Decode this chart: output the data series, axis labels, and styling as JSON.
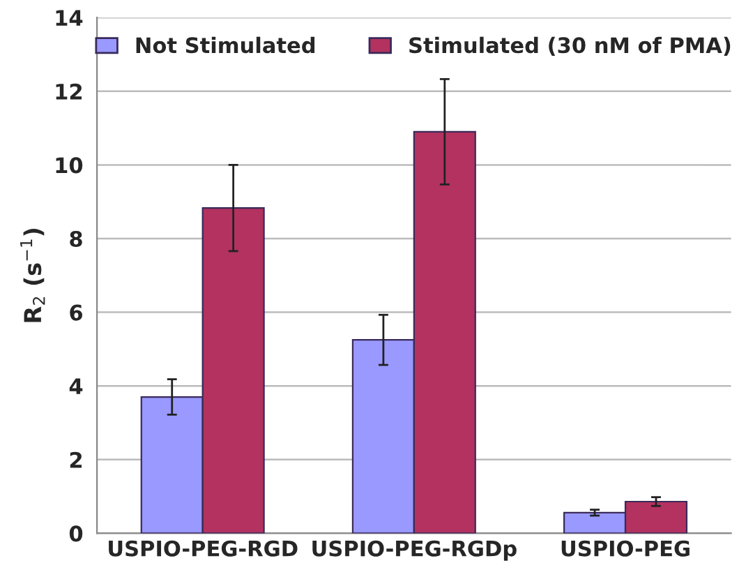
{
  "chart_data": {
    "type": "bar",
    "ylabel": "R$_{2}$ (s$^{−1}$)",
    "categories": [
      "USPIO-PEG-RGD",
      "USPIO-PEG-RGDp",
      "USPIO-PEG"
    ],
    "series": [
      {
        "name": "Not Stimulated",
        "color": "#9999ff",
        "values": [
          3.7,
          5.25,
          0.56
        ],
        "errors": [
          0.48,
          0.68,
          0.08
        ]
      },
      {
        "name": "Stimulated (30 nM of PMA)",
        "color": "#b3325f",
        "values": [
          8.83,
          10.9,
          0.86
        ],
        "errors": [
          1.17,
          1.43,
          0.12
        ]
      }
    ],
    "ylim": [
      0,
      14
    ],
    "yticks": [
      0,
      2,
      4,
      6,
      8,
      10,
      12,
      14
    ],
    "grid": "y",
    "legend": "top"
  }
}
